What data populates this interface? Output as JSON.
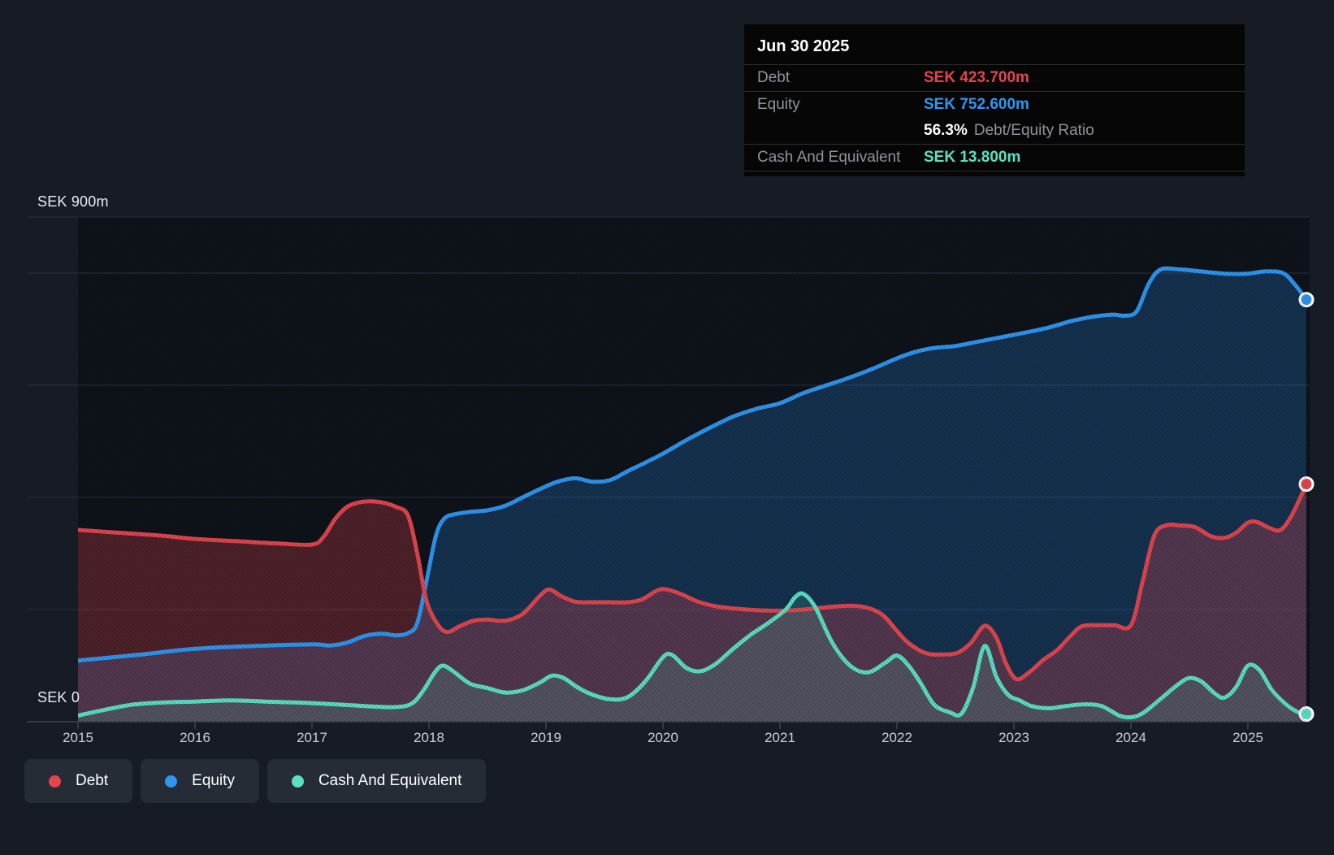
{
  "y_axis": {
    "top_label": "SEK 900m",
    "zero_label": "SEK 0"
  },
  "x_axis": {
    "tick_labels": [
      "2015",
      "2016",
      "2017",
      "2018",
      "2019",
      "2020",
      "2021",
      "2022",
      "2023",
      "2024",
      "2025"
    ]
  },
  "tooltip": {
    "date": "Jun 30 2025",
    "debt_label": "Debt",
    "debt_value": "SEK 423.700m",
    "equity_label": "Equity",
    "equity_value": "SEK 752.600m",
    "ratio_value": "56.3%",
    "ratio_label": "Debt/Equity Ratio",
    "cash_label": "Cash And Equivalent",
    "cash_value": "SEK 13.800m"
  },
  "legend": {
    "items": [
      {
        "label": "Debt",
        "color": "#e2454e"
      },
      {
        "label": "Equity",
        "color": "#2f96f0"
      },
      {
        "label": "Cash And Equivalent",
        "color": "#5be0c3"
      }
    ]
  },
  "colors": {
    "background": "#161b24",
    "plot_background": "#0e1219",
    "gridline": "#2b313d",
    "axis_line": "#3d4450",
    "debt": "#e2454e",
    "equity": "#2f96f0",
    "cash": "#5be0c3"
  },
  "chart_data": {
    "type": "area",
    "title": "",
    "xlabel": "",
    "ylabel": "SEK (millions)",
    "xlim": [
      2015,
      2025.63
    ],
    "ylim": [
      0,
      900
    ],
    "grid": "horizontal",
    "legend_position": "bottom-left",
    "y_gridline_values": [
      900,
      800,
      600,
      400,
      200
    ],
    "x_tick_values": [
      2015,
      2016,
      2017,
      2018,
      2019,
      2020,
      2021,
      2022,
      2023,
      2024,
      2025
    ],
    "x_end": 2025.5,
    "series": [
      {
        "name": "Equity",
        "color": "#2f96f0",
        "fill": "rgba(37,116,192,0.32)",
        "points": [
          [
            2015,
            109
          ],
          [
            2015.5,
            119
          ],
          [
            2016,
            130
          ],
          [
            2016.5,
            135
          ],
          [
            2017,
            138
          ],
          [
            2017.15,
            136
          ],
          [
            2017.3,
            141
          ],
          [
            2017.45,
            153
          ],
          [
            2017.6,
            157
          ],
          [
            2017.72,
            154
          ],
          [
            2017.82,
            158
          ],
          [
            2017.9,
            176
          ],
          [
            2017.98,
            252
          ],
          [
            2018.06,
            332
          ],
          [
            2018.13,
            362
          ],
          [
            2018.22,
            370
          ],
          [
            2018.35,
            374
          ],
          [
            2018.5,
            377
          ],
          [
            2018.65,
            385
          ],
          [
            2018.8,
            400
          ],
          [
            2018.95,
            415
          ],
          [
            2019.1,
            428
          ],
          [
            2019.25,
            434
          ],
          [
            2019.4,
            428
          ],
          [
            2019.55,
            431
          ],
          [
            2019.7,
            447
          ],
          [
            2019.85,
            462
          ],
          [
            2020,
            478
          ],
          [
            2020.2,
            502
          ],
          [
            2020.4,
            524
          ],
          [
            2020.6,
            544
          ],
          [
            2020.8,
            558
          ],
          [
            2021,
            568
          ],
          [
            2021.2,
            586
          ],
          [
            2021.4,
            600
          ],
          [
            2021.6,
            614
          ],
          [
            2021.8,
            630
          ],
          [
            2022,
            648
          ],
          [
            2022.15,
            659
          ],
          [
            2022.3,
            666
          ],
          [
            2022.5,
            670
          ],
          [
            2022.7,
            678
          ],
          [
            2022.9,
            686
          ],
          [
            2023.1,
            694
          ],
          [
            2023.3,
            703
          ],
          [
            2023.5,
            715
          ],
          [
            2023.7,
            723
          ],
          [
            2023.85,
            726
          ],
          [
            2023.95,
            724
          ],
          [
            2024.05,
            732
          ],
          [
            2024.15,
            780
          ],
          [
            2024.25,
            806
          ],
          [
            2024.4,
            807
          ],
          [
            2024.6,
            803
          ],
          [
            2024.8,
            799
          ],
          [
            2025,
            799
          ],
          [
            2025.15,
            803
          ],
          [
            2025.3,
            800
          ],
          [
            2025.4,
            780
          ],
          [
            2025.5,
            752.6
          ]
        ]
      },
      {
        "name": "Debt",
        "color": "#e2454e",
        "fill": "rgba(226,70,78,0.30)",
        "points": [
          [
            2015,
            342
          ],
          [
            2015.35,
            337
          ],
          [
            2015.7,
            332
          ],
          [
            2016,
            326
          ],
          [
            2016.35,
            322
          ],
          [
            2016.7,
            318
          ],
          [
            2017,
            316
          ],
          [
            2017.1,
            330
          ],
          [
            2017.2,
            362
          ],
          [
            2017.3,
            383
          ],
          [
            2017.4,
            391
          ],
          [
            2017.5,
            393
          ],
          [
            2017.6,
            391
          ],
          [
            2017.72,
            383
          ],
          [
            2017.82,
            368
          ],
          [
            2017.9,
            300
          ],
          [
            2017.98,
            215
          ],
          [
            2018.08,
            172
          ],
          [
            2018.16,
            160
          ],
          [
            2018.26,
            170
          ],
          [
            2018.38,
            180
          ],
          [
            2018.5,
            182
          ],
          [
            2018.65,
            180
          ],
          [
            2018.8,
            192
          ],
          [
            2018.95,
            225
          ],
          [
            2019.03,
            236
          ],
          [
            2019.13,
            224
          ],
          [
            2019.25,
            214
          ],
          [
            2019.4,
            213
          ],
          [
            2019.55,
            213
          ],
          [
            2019.7,
            213
          ],
          [
            2019.82,
            218
          ],
          [
            2019.95,
            234
          ],
          [
            2020.03,
            236
          ],
          [
            2020.15,
            228
          ],
          [
            2020.3,
            214
          ],
          [
            2020.45,
            206
          ],
          [
            2020.6,
            202
          ],
          [
            2020.8,
            199
          ],
          [
            2021,
            198
          ],
          [
            2021.2,
            200
          ],
          [
            2021.4,
            204
          ],
          [
            2021.6,
            207
          ],
          [
            2021.75,
            203
          ],
          [
            2021.88,
            190
          ],
          [
            2022,
            162
          ],
          [
            2022.1,
            140
          ],
          [
            2022.25,
            122
          ],
          [
            2022.4,
            120
          ],
          [
            2022.52,
            123
          ],
          [
            2022.63,
            140
          ],
          [
            2022.75,
            171
          ],
          [
            2022.85,
            150
          ],
          [
            2022.93,
            105
          ],
          [
            2023.02,
            76
          ],
          [
            2023.13,
            88
          ],
          [
            2023.25,
            110
          ],
          [
            2023.37,
            128
          ],
          [
            2023.48,
            152
          ],
          [
            2023.58,
            170
          ],
          [
            2023.72,
            172
          ],
          [
            2023.86,
            172
          ],
          [
            2024,
            172
          ],
          [
            2024.1,
            250
          ],
          [
            2024.2,
            332
          ],
          [
            2024.3,
            350
          ],
          [
            2024.42,
            350
          ],
          [
            2024.55,
            347
          ],
          [
            2024.68,
            331
          ],
          [
            2024.8,
            328
          ],
          [
            2024.9,
            337
          ],
          [
            2025,
            355
          ],
          [
            2025.08,
            356
          ],
          [
            2025.18,
            346
          ],
          [
            2025.28,
            342
          ],
          [
            2025.38,
            370
          ],
          [
            2025.5,
            423.7
          ]
        ]
      },
      {
        "name": "Cash And Equivalent",
        "color": "#5be0c3",
        "fill": "rgba(91,224,195,0.16)",
        "points": [
          [
            2015,
            11
          ],
          [
            2015.2,
            20
          ],
          [
            2015.45,
            30
          ],
          [
            2015.7,
            34
          ],
          [
            2016,
            36
          ],
          [
            2016.3,
            38
          ],
          [
            2016.6,
            36
          ],
          [
            2016.9,
            34
          ],
          [
            2017.2,
            31
          ],
          [
            2017.45,
            28
          ],
          [
            2017.7,
            26
          ],
          [
            2017.85,
            32
          ],
          [
            2017.95,
            55
          ],
          [
            2018.05,
            88
          ],
          [
            2018.12,
            100
          ],
          [
            2018.22,
            88
          ],
          [
            2018.35,
            68
          ],
          [
            2018.5,
            60
          ],
          [
            2018.65,
            52
          ],
          [
            2018.8,
            56
          ],
          [
            2018.95,
            70
          ],
          [
            2019.05,
            82
          ],
          [
            2019.15,
            78
          ],
          [
            2019.28,
            60
          ],
          [
            2019.4,
            48
          ],
          [
            2019.55,
            40
          ],
          [
            2019.7,
            44
          ],
          [
            2019.85,
            72
          ],
          [
            2020,
            115
          ],
          [
            2020.08,
            119
          ],
          [
            2020.2,
            96
          ],
          [
            2020.32,
            90
          ],
          [
            2020.45,
            103
          ],
          [
            2020.6,
            130
          ],
          [
            2020.75,
            155
          ],
          [
            2020.9,
            176
          ],
          [
            2021.05,
            200
          ],
          [
            2021.13,
            222
          ],
          [
            2021.2,
            228
          ],
          [
            2021.3,
            205
          ],
          [
            2021.45,
            140
          ],
          [
            2021.6,
            100
          ],
          [
            2021.75,
            88
          ],
          [
            2021.9,
            105
          ],
          [
            2022,
            118
          ],
          [
            2022.1,
            100
          ],
          [
            2022.2,
            70
          ],
          [
            2022.32,
            30
          ],
          [
            2022.45,
            17
          ],
          [
            2022.55,
            14
          ],
          [
            2022.65,
            60
          ],
          [
            2022.75,
            135
          ],
          [
            2022.85,
            80
          ],
          [
            2022.95,
            48
          ],
          [
            2023.05,
            38
          ],
          [
            2023.15,
            28
          ],
          [
            2023.3,
            24
          ],
          [
            2023.45,
            28
          ],
          [
            2023.6,
            31
          ],
          [
            2023.75,
            28
          ],
          [
            2023.9,
            11
          ],
          [
            2024,
            8
          ],
          [
            2024.1,
            15
          ],
          [
            2024.25,
            40
          ],
          [
            2024.4,
            66
          ],
          [
            2024.5,
            78
          ],
          [
            2024.6,
            72
          ],
          [
            2024.72,
            50
          ],
          [
            2024.8,
            43
          ],
          [
            2024.9,
            62
          ],
          [
            2025,
            100
          ],
          [
            2025.1,
            92
          ],
          [
            2025.2,
            58
          ],
          [
            2025.32,
            32
          ],
          [
            2025.42,
            18
          ],
          [
            2025.5,
            13.8
          ]
        ]
      }
    ]
  }
}
